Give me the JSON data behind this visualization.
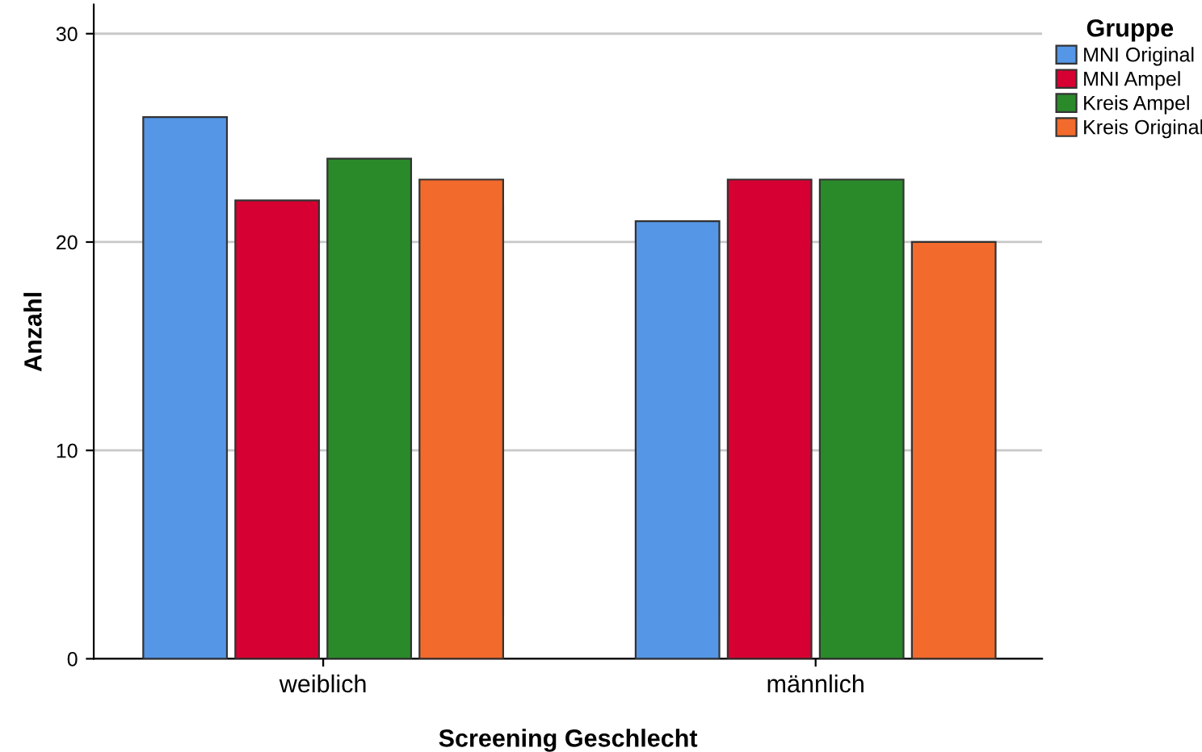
{
  "chart_data": {
    "type": "bar",
    "xlabel": "Screening Geschlecht",
    "ylabel": "Anzahl",
    "legend_title": "Gruppe",
    "categories": [
      "weiblich",
      "männlich"
    ],
    "series": [
      {
        "name": "MNI Original",
        "color": "#5596e6",
        "values": [
          26,
          21
        ]
      },
      {
        "name": "MNI Ampel",
        "color": "#d60032",
        "values": [
          22,
          23
        ]
      },
      {
        "name": "Kreis Ampel",
        "color": "#2a8a2a",
        "values": [
          24,
          23
        ]
      },
      {
        "name": "Kreis Original",
        "color": "#f26a2c",
        "values": [
          23,
          20
        ]
      }
    ],
    "ylim": [
      0,
      31.4
    ],
    "yticks": [
      0,
      10,
      20,
      30
    ],
    "grid": "y",
    "legend": "top right"
  }
}
